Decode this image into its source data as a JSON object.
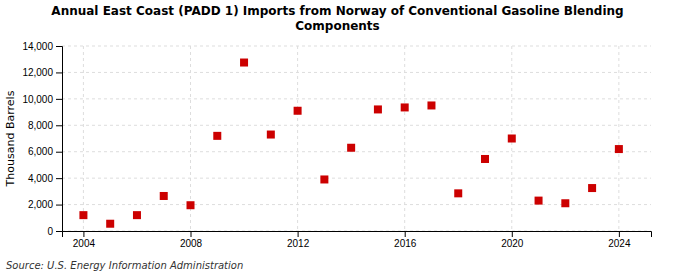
{
  "chart_data": {
    "type": "scatter",
    "title": "Annual East Coast (PADD 1) Imports from Norway of Conventional Gasoline Blending\nComponents",
    "y_label": "Thousand Barrels",
    "annotations": [
      "Source: U.S. Energy Information Administration"
    ],
    "x": [
      2004,
      2005,
      2006,
      2007,
      2008,
      2009,
      2010,
      2011,
      2012,
      2013,
      2014,
      2015,
      2016,
      2017,
      2018,
      2019,
      2020,
      2021,
      2022,
      2023,
      2024
    ],
    "values": [
      1200,
      550,
      1200,
      2650,
      1950,
      7200,
      12750,
      7300,
      9100,
      3900,
      6300,
      9200,
      9350,
      9500,
      2850,
      5450,
      7000,
      2300,
      2100,
      3250,
      6200
    ],
    "color": "#cc0000",
    "marker": "square",
    "xlim": [
      2003.2,
      2025.2
    ],
    "ylim": [
      0,
      14000
    ],
    "xticks": [
      2004,
      2008,
      2012,
      2016,
      2020,
      2024
    ],
    "yticks": [
      0,
      {
        "value": 2000,
        "label": "2,000"
      },
      {
        "value": 4000,
        "label": "4,000"
      },
      {
        "value": 6000,
        "label": "6,000"
      },
      {
        "value": 8000,
        "label": "8,000"
      },
      {
        "value": 10000,
        "label": "10,000"
      },
      {
        "value": 12000,
        "label": "12,000"
      },
      {
        "value": 14000,
        "label": "14,000"
      }
    ],
    "grid": true
  }
}
